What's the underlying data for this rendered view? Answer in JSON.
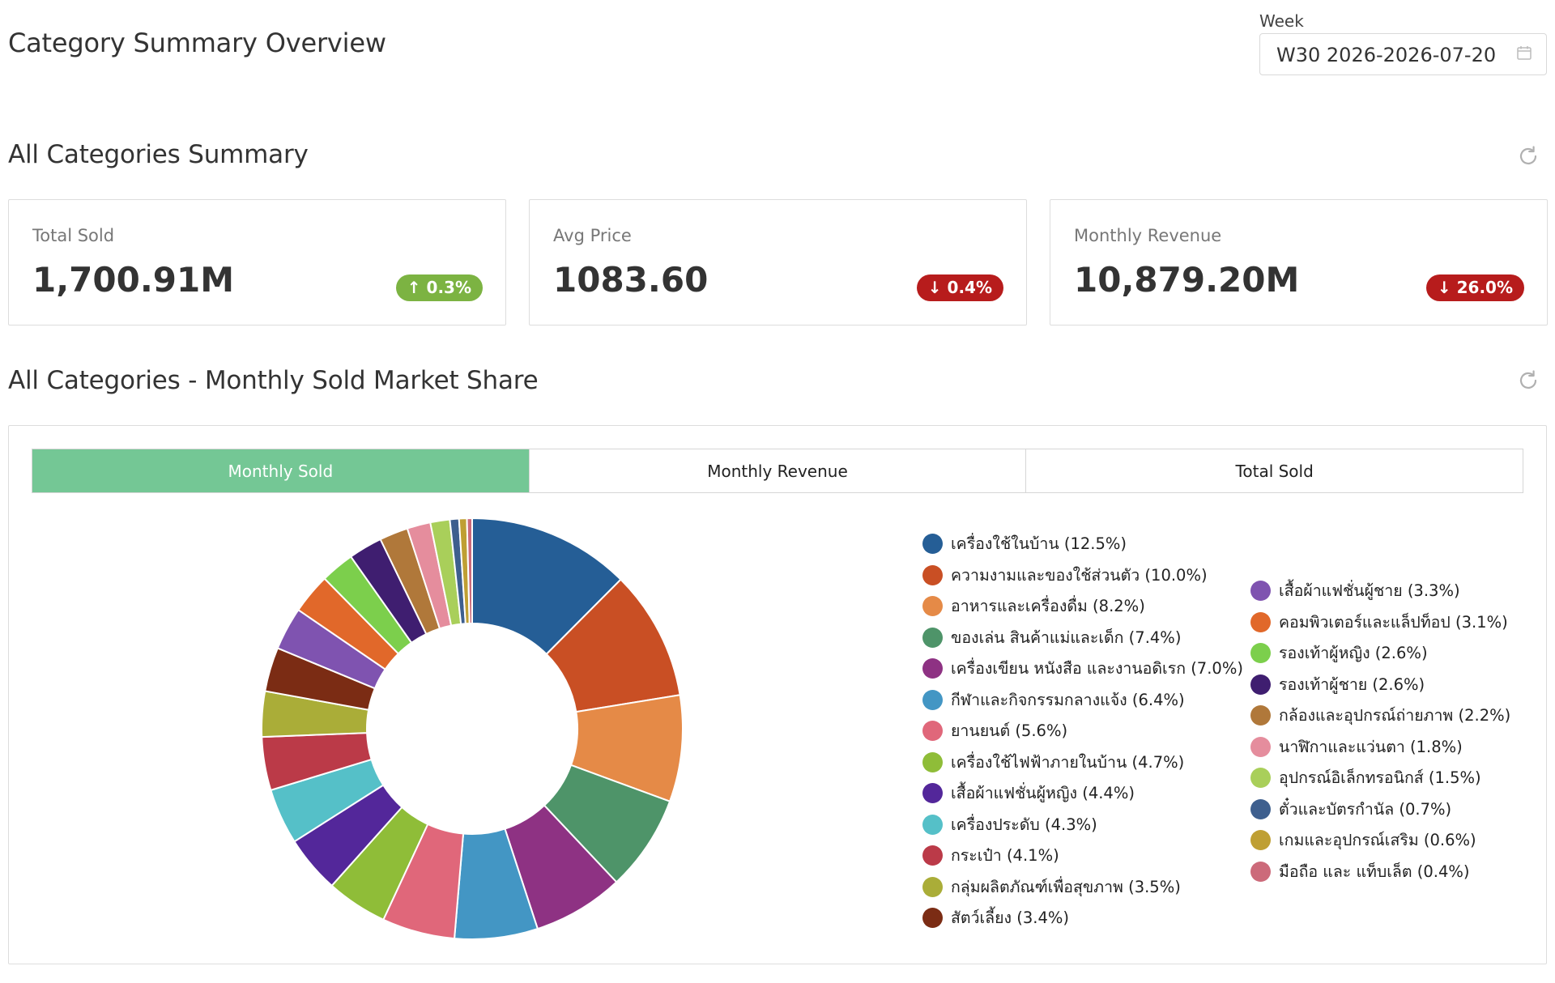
{
  "page": {
    "title": "Category Summary Overview"
  },
  "week": {
    "label": "Week",
    "value": "W30 2026-2026-07-20",
    "icon": "calendar-icon"
  },
  "summary": {
    "title": "All Categories Summary",
    "cards": [
      {
        "label": "Total Sold",
        "value": "1,700.91M",
        "change": "0.3%",
        "direction": "up",
        "arrow": "↑"
      },
      {
        "label": "Avg Price",
        "value": "1083.60",
        "change": "0.4%",
        "direction": "down",
        "arrow": "↓"
      },
      {
        "label": "Monthly Revenue",
        "value": "10,879.20M",
        "change": "26.0%",
        "direction": "down",
        "arrow": "↓"
      }
    ]
  },
  "share": {
    "title": "All Categories - Monthly Sold Market Share",
    "tabs": [
      {
        "label": "Monthly Sold",
        "active": true
      },
      {
        "label": "Monthly Revenue",
        "active": false
      },
      {
        "label": "Total Sold",
        "active": false
      }
    ]
  },
  "chart_data": {
    "type": "pie",
    "donut": true,
    "legend_position": "right",
    "slices": [
      {
        "label": "เครื่องใช้ในบ้าน (12.5%)",
        "value": 12.5,
        "color": "#255e96"
      },
      {
        "label": "ความงามและของใช้ส่วนตัว (10.0%)",
        "value": 10.0,
        "color": "#c94f24"
      },
      {
        "label": "อาหารและเครื่องดื่ม (8.2%)",
        "value": 8.2,
        "color": "#e58a47"
      },
      {
        "label": "ของเล่น สินค้าแม่และเด็ก (7.4%)",
        "value": 7.4,
        "color": "#4e9469"
      },
      {
        "label": "เครื่องเขียน หนังสือ และงานอดิเรก (7.0%)",
        "value": 7.0,
        "color": "#8e3283"
      },
      {
        "label": "กีฬาและกิจกรรมกลางแจ้ง (6.4%)",
        "value": 6.4,
        "color": "#4396c4"
      },
      {
        "label": "ยานยนต์ (5.6%)",
        "value": 5.6,
        "color": "#e0677a"
      },
      {
        "label": "เครื่องใช้ไฟฟ้าภายในบ้าน (4.7%)",
        "value": 4.7,
        "color": "#8fbd38"
      },
      {
        "label": "เสื้อผ้าแฟชั่นผู้หญิง (4.4%)",
        "value": 4.4,
        "color": "#53279a"
      },
      {
        "label": "เครื่องประดับ (4.3%)",
        "value": 4.3,
        "color": "#55c0c8"
      },
      {
        "label": "กระเป๋า (4.1%)",
        "value": 4.1,
        "color": "#bb3a48"
      },
      {
        "label": "กลุ่มผลิตภัณฑ์เพื่อสุขภาพ (3.5%)",
        "value": 3.5,
        "color": "#aaad38"
      },
      {
        "label": "สัตว์เลี้ยง (3.4%)",
        "value": 3.4,
        "color": "#7b2c14"
      },
      {
        "label": "เสื้อผ้าแฟชั่นผู้ชาย (3.3%)",
        "value": 3.3,
        "color": "#7f53b0"
      },
      {
        "label": "คอมพิวเตอร์และแล็ปท็อป (3.1%)",
        "value": 3.1,
        "color": "#e1682a"
      },
      {
        "label": "รองเท้าผู้หญิง (2.6%)",
        "value": 2.6,
        "color": "#7ccf4c"
      },
      {
        "label": "รองเท้าผู้ชาย (2.6%)",
        "value": 2.6,
        "color": "#3f1e70"
      },
      {
        "label": "กล้องและอุปกรณ์ถ่ายภาพ (2.2%)",
        "value": 2.2,
        "color": "#b0783a"
      },
      {
        "label": "นาฬิกาและแว่นตา (1.8%)",
        "value": 1.8,
        "color": "#e58d9d"
      },
      {
        "label": "อุปกรณ์อิเล็กทรอนิกส์ (1.5%)",
        "value": 1.5,
        "color": "#a9cf5a"
      },
      {
        "label": "ตั๋วและบัตรกำนัล (0.7%)",
        "value": 0.7,
        "color": "#3e5f8e"
      },
      {
        "label": "เกมและอุปกรณ์เสริม (0.6%)",
        "value": 0.6,
        "color": "#bf9f33"
      },
      {
        "label": "มือถือ และ แท็บเล็ต (0.4%)",
        "value": 0.4,
        "color": "#cc6a7a"
      }
    ]
  }
}
